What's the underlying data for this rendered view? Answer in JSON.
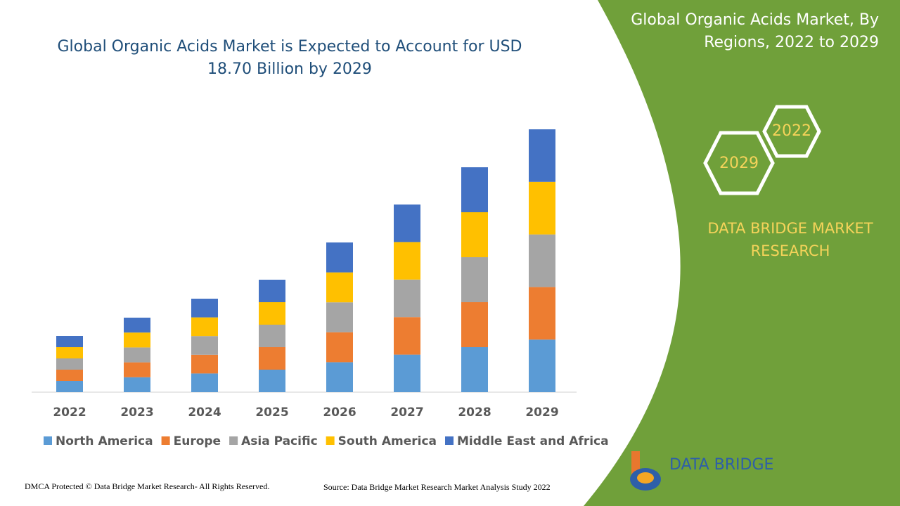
{
  "chart_data": {
    "type": "bar",
    "stacked": true,
    "title": [
      "Global Organic Acids Market is Expected to Account for USD",
      "18.70 Billion by 2029"
    ],
    "categories": [
      "2022",
      "2023",
      "2024",
      "2025",
      "2026",
      "2027",
      "2028",
      "2029"
    ],
    "series": [
      {
        "name": "North America",
        "color": "#5b9bd5",
        "values": [
          0.8,
          1.06,
          1.33,
          1.6,
          2.13,
          2.67,
          3.2,
          3.74
        ]
      },
      {
        "name": "Europe",
        "color": "#ed7d31",
        "values": [
          0.8,
          1.06,
          1.33,
          1.6,
          2.13,
          2.67,
          3.2,
          3.74
        ]
      },
      {
        "name": "Asia Pacific",
        "color": "#a5a5a5",
        "values": [
          0.8,
          1.06,
          1.33,
          1.6,
          2.13,
          2.67,
          3.2,
          3.74
        ]
      },
      {
        "name": "South America",
        "color": "#ffc000",
        "values": [
          0.8,
          1.06,
          1.33,
          1.6,
          2.13,
          2.67,
          3.2,
          3.74
        ]
      },
      {
        "name": "Middle East and Africa",
        "color": "#4472c4",
        "values": [
          0.8,
          1.06,
          1.33,
          1.6,
          2.13,
          2.67,
          3.2,
          3.74
        ]
      }
    ],
    "ylim": [
      0,
      18.7
    ],
    "grid": false,
    "legend": "bottom"
  },
  "panel": {
    "title": [
      "Global Organic Acids Market, By",
      "Regions, 2022 to 2029"
    ],
    "hexagons": [
      "2022",
      "2029"
    ],
    "brand": [
      "DATA BRIDGE MARKET",
      "RESEARCH"
    ],
    "logo": "DATA BRIDGE"
  },
  "footer": {
    "copyright": "DMCA Protected © Data Bridge Market Research- All Rights Reserved.",
    "source": "Source: Data Bridge Market Research Market Analysis Study 2022"
  }
}
